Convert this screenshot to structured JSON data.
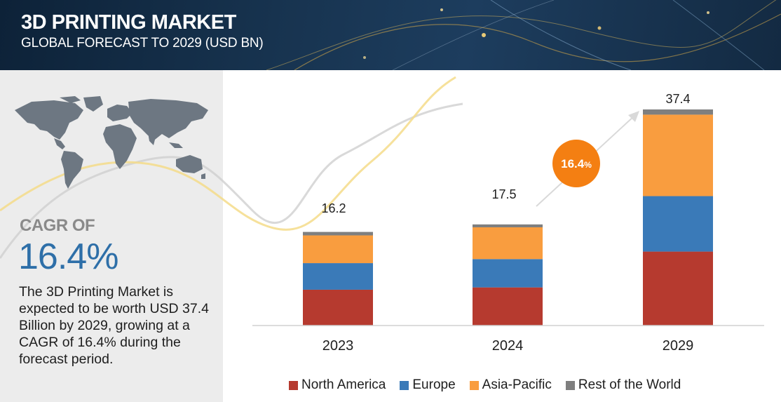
{
  "header": {
    "title": "3D PRINTING MARKET",
    "subtitle": "GLOBAL FORECAST TO 2029 (USD BN)"
  },
  "sidebar": {
    "cagr_label": "CAGR OF",
    "cagr_value": "16.4%",
    "description": "The 3D Printing Market is expected to be worth USD 37.4 Billion by 2029, growing at a CAGR of 16.4% during the forecast period."
  },
  "chart_data": {
    "type": "bar",
    "stacked": true,
    "categories": [
      "2023",
      "2024",
      "2029"
    ],
    "totals": [
      "16.2",
      "17.5",
      "37.4"
    ],
    "cagr_badge": "16.4%",
    "series": [
      {
        "name": "North America",
        "color": "#b63a2f",
        "values": [
          6.2,
          6.6,
          12.8
        ]
      },
      {
        "name": "Europe",
        "color": "#3a7ab8",
        "values": [
          4.6,
          4.9,
          9.6
        ]
      },
      {
        "name": "Asia-Pacific",
        "color": "#f99d3f",
        "values": [
          4.8,
          5.5,
          14.1
        ]
      },
      {
        "name": "Rest of the World",
        "color": "#7f7f7f",
        "values": [
          0.6,
          0.5,
          0.9
        ]
      }
    ],
    "ylim": [
      0,
      37.4
    ],
    "grid": false,
    "legend_position": "bottom"
  }
}
